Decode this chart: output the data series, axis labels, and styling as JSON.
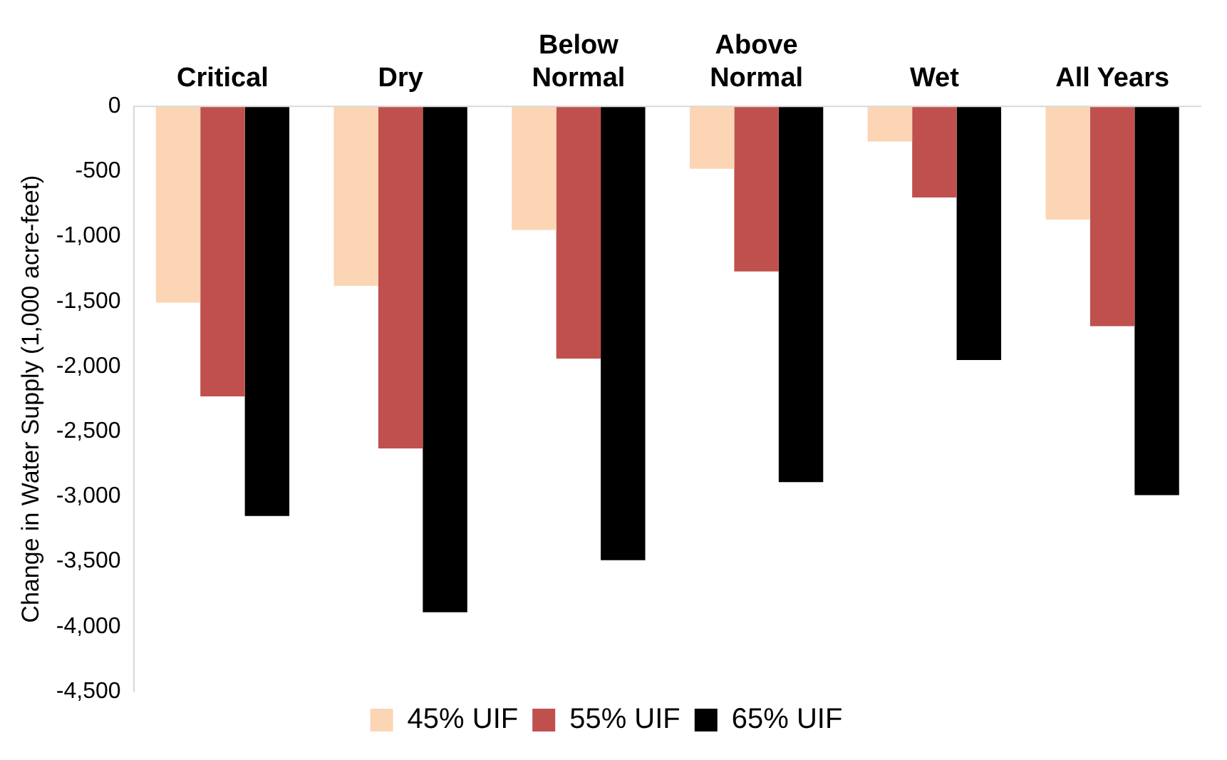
{
  "chart_data": {
    "type": "bar",
    "ylabel": "Change in Water Supply (1,000 acre-feet)",
    "categories": [
      "Critical",
      "Dry",
      "Below Normal",
      "Above Normal",
      "Wet",
      "All Years"
    ],
    "series": [
      {
        "name": "45% UIF",
        "color": "#fcd5b5",
        "values": [
          -1510,
          -1380,
          -950,
          -480,
          -270,
          -870
        ]
      },
      {
        "name": "55% UIF",
        "color": "#c0504d",
        "values": [
          -2230,
          -2630,
          -1940,
          -1270,
          -700,
          -1690
        ]
      },
      {
        "name": "65% UIF",
        "color": "#000000",
        "values": [
          -3150,
          -3890,
          -3490,
          -2890,
          -1950,
          -2990
        ]
      }
    ],
    "ylim": [
      -4500,
      0
    ],
    "yticks": [
      0,
      -500,
      {
        "value": -1000,
        "label": "-1,000"
      },
      {
        "value": -1500,
        "label": "-1,500"
      },
      {
        "value": -2000,
        "label": "-2,000"
      },
      {
        "value": -2500,
        "label": "-2,500"
      },
      {
        "value": -3000,
        "label": "-3,000"
      },
      {
        "value": -3500,
        "label": "-3,500"
      },
      {
        "value": -4000,
        "label": "-4,000"
      },
      {
        "value": -4500,
        "label": "-4,500"
      }
    ],
    "grid": false,
    "legend": "bottom"
  }
}
